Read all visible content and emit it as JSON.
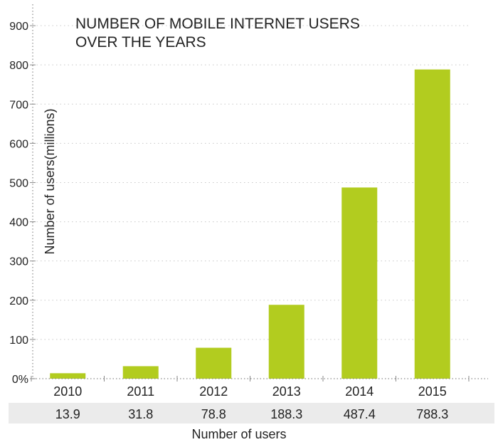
{
  "chart_data": {
    "type": "bar",
    "title_lines": [
      "NUMBER OF MOBILE INTERNET USERS",
      "OVER THE YEARS"
    ],
    "xlabel": "Number of users",
    "ylabel": "Number of users(millions)",
    "categories": [
      "2010",
      "2011",
      "2012",
      "2013",
      "2014",
      "2015"
    ],
    "values": [
      13.9,
      31.8,
      78.8,
      188.3,
      487.4,
      788.3
    ],
    "value_labels": [
      "13.9",
      "31.8",
      "78.8",
      "188.3",
      "487.4",
      "788.3"
    ],
    "y_ticks": [
      0,
      100,
      200,
      300,
      400,
      500,
      600,
      700,
      800,
      900
    ],
    "y_tick_labels": [
      "0%",
      "100",
      "200",
      "300",
      "400",
      "500",
      "600",
      "700",
      "800",
      "900"
    ],
    "ylim": [
      0,
      940
    ],
    "grid": true,
    "colors": {
      "bar": "#b2cc1f",
      "grid": "#c8c8c8",
      "axis": "#8a8a8a",
      "table_band": "#ebebeb",
      "text": "#222222"
    }
  }
}
